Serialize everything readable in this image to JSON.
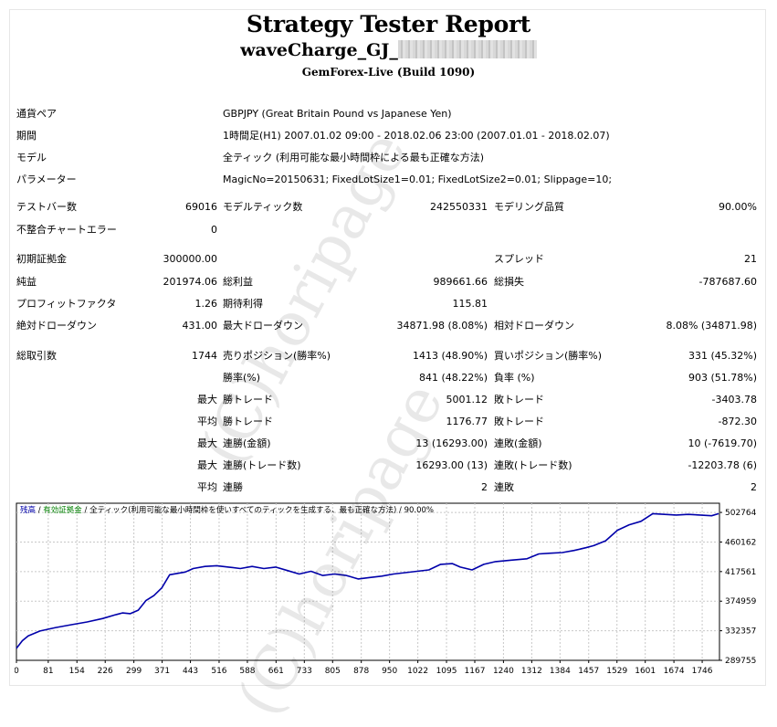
{
  "report": {
    "title": "Strategy Tester Report",
    "ea_name": "waveCharge_GJ_",
    "server": "GemForex-Live (Build 1090)"
  },
  "settings": [
    {
      "label": "通貨ペア",
      "value": "GBPJPY (Great Britain Pound vs Japanese Yen)"
    },
    {
      "label": "期間",
      "value": "1時間足(H1) 2007.01.02 09:00 - 2018.02.06 23:00 (2007.01.01 - 2018.02.07)"
    },
    {
      "label": "モデル",
      "value": "全ティック (利用可能な最小時間枠による最も正確な方法)"
    },
    {
      "label": "パラメーター",
      "value": "MagicNo=20150631; FixedLotSize1=0.01; FixedLotSize2=0.01; Slippage=10;"
    }
  ],
  "stats": {
    "bars_label": "テストバー数",
    "bars": "69016",
    "ticks_label": "モデルティック数",
    "ticks": "242550331",
    "quality_label": "モデリング品質",
    "quality": "90.00%",
    "mismatch_label": "不整合チャートエラー",
    "mismatch": "0",
    "deposit_label": "初期証拠金",
    "deposit": "300000.00",
    "spread_label": "スプレッド",
    "spread": "21",
    "net_label": "純益",
    "net": "201974.06",
    "gross_profit_label": "総利益",
    "gross_profit": "989661.66",
    "gross_loss_label": "総損失",
    "gross_loss": "-787687.60",
    "pf_label": "プロフィットファクタ",
    "pf": "1.26",
    "expected_label": "期待利得",
    "expected": "115.81",
    "abs_dd_label": "絶対ドローダウン",
    "abs_dd": "431.00",
    "max_dd_label": "最大ドローダウン",
    "max_dd": "34871.98 (8.08%)",
    "rel_dd_label": "相対ドローダウン",
    "rel_dd": "8.08% (34871.98)",
    "total_trades_label": "総取引数",
    "total_trades": "1744",
    "short_label": "売りポジション(勝率%)",
    "short": "1413 (48.90%)",
    "long_label": "買いポジション(勝率%)",
    "long": "331 (45.32%)",
    "win_label": "勝率(%)",
    "win": "841 (48.22%)",
    "loss_label": "負率 (%)",
    "loss": "903 (51.78%)",
    "max_word": "最大",
    "avg_word": "平均",
    "largest_win_label": "勝トレード",
    "largest_win": "5001.12",
    "largest_loss_label": "敗トレード",
    "largest_loss": "-3403.78",
    "avg_win_label": "勝トレード",
    "avg_win": "1176.77",
    "avg_loss_label": "敗トレード",
    "avg_loss": "-872.30",
    "max_cons_win_amt_label": "連勝(金額)",
    "max_cons_win_amt": "13 (16293.00)",
    "max_cons_loss_amt_label": "連敗(金額)",
    "max_cons_loss_amt": "10 (-7619.70)",
    "max_cons_win_cnt_label": "連勝(トレード数)",
    "max_cons_win_cnt": "16293.00 (13)",
    "max_cons_loss_cnt_label": "連敗(トレード数)",
    "max_cons_loss_cnt": "-12203.78 (6)",
    "avg_cons_win_label": "連勝",
    "avg_cons_win": "2",
    "avg_cons_loss_label": "連敗",
    "avg_cons_loss": "2"
  },
  "watermark": "(C)horipage",
  "chart_data": {
    "type": "line",
    "legend": {
      "balance": "残高",
      "equity": "有効証拠金",
      "description": "全ティック(利用可能な最小時間枠を使いすべてのティックを生成する、最も正確な方法)",
      "quality": "90.00%"
    },
    "x_ticks": [
      0,
      81,
      154,
      226,
      299,
      371,
      443,
      516,
      588,
      661,
      733,
      805,
      878,
      950,
      1022,
      1095,
      1167,
      1240,
      1312,
      1384,
      1457,
      1529,
      1601,
      1674,
      1746
    ],
    "y_ticks": [
      502764,
      460162,
      417561,
      374959,
      332357,
      289755
    ],
    "ylim": [
      289755,
      516000
    ],
    "xlim": [
      0,
      1790
    ],
    "series": [
      {
        "name": "残高",
        "color": "#0000aa",
        "x": [
          0,
          15,
          30,
          60,
          100,
          140,
          180,
          220,
          250,
          270,
          290,
          310,
          330,
          350,
          370,
          390,
          410,
          430,
          450,
          480,
          510,
          540,
          570,
          600,
          630,
          660,
          690,
          720,
          750,
          780,
          810,
          840,
          870,
          900,
          930,
          960,
          990,
          1020,
          1050,
          1080,
          1110,
          1130,
          1160,
          1190,
          1220,
          1260,
          1300,
          1330,
          1360,
          1390,
          1420,
          1450,
          1470,
          1500,
          1530,
          1560,
          1590,
          1620,
          1650,
          1680,
          1710,
          1740,
          1770,
          1788
        ],
        "y": [
          307000,
          318000,
          325000,
          332000,
          337000,
          341000,
          345000,
          350000,
          355000,
          358000,
          357000,
          362000,
          376000,
          383000,
          394000,
          413000,
          415000,
          417000,
          422000,
          425000,
          426000,
          424000,
          422000,
          425000,
          422000,
          424000,
          419000,
          414000,
          418000,
          412000,
          414000,
          412000,
          407000,
          409000,
          411000,
          414000,
          416000,
          418000,
          420000,
          428000,
          429000,
          424000,
          420000,
          428000,
          432000,
          434000,
          436000,
          443000,
          444000,
          445000,
          448000,
          452000,
          455000,
          462000,
          477000,
          485000,
          490000,
          501000,
          500000,
          499000,
          500000,
          499000,
          498000,
          501000
        ]
      }
    ]
  }
}
